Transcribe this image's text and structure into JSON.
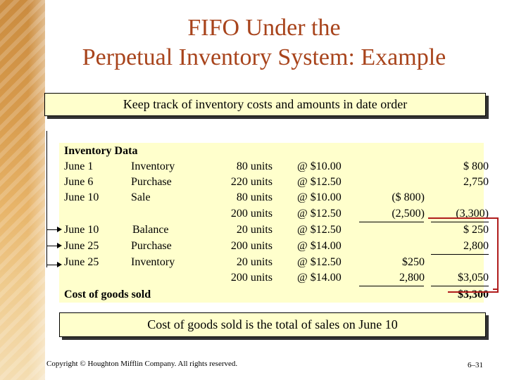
{
  "title": {
    "line1": "FIFO Under the",
    "line2": "Perpetual Inventory System: Example"
  },
  "top_banner": "Keep track of inventory costs and amounts in date order",
  "section_header": "Inventory Data",
  "rows": [
    {
      "date": "June 1",
      "desc": "Inventory",
      "units": "80 units",
      "cost": "@ $10.00",
      "mid": "",
      "total": "$ 800"
    },
    {
      "date": "June 6",
      "desc": "Purchase",
      "units": "220 units",
      "cost": "@ $12.50",
      "mid": "",
      "total": "2,750"
    },
    {
      "date": "June 10",
      "desc": "Sale",
      "units": "80 units",
      "cost": "@ $10.00",
      "mid": "($ 800)",
      "total": ""
    },
    {
      "date": "",
      "desc": "",
      "units": "200 units",
      "cost": "@ $12.50",
      "mid": "(2,500)",
      "total": "(3,300)"
    },
    {
      "date": "June 10",
      "desc": "Balance",
      "units": "20 units",
      "cost": "@ $12.50",
      "mid": "",
      "total": "$ 250"
    },
    {
      "date": "June 25",
      "desc": "Purchase",
      "units": "200 units",
      "cost": "@ $14.00",
      "mid": "",
      "total": "2,800"
    },
    {
      "date": "June 25",
      "desc": "Inventory",
      "units": "20 units",
      "cost": "@ $12.50",
      "mid": "$250",
      "total": ""
    },
    {
      "date": "",
      "desc": "",
      "units": "200 units",
      "cost": "@ $14.00",
      "mid": "2,800",
      "total": "$3,050"
    }
  ],
  "cogs_label": "Cost of goods sold",
  "cogs_value": "$3,300",
  "bottom_banner": "Cost of goods sold is the total of sales on June 10",
  "footer": {
    "copyright": "Copyright © Houghton Mifflin Company.  All rights reserved.",
    "slide_number": "6–31"
  },
  "colors": {
    "title": "#a8441c",
    "highlight": "#ffffcc",
    "accent_frame": "#b01c1c"
  }
}
